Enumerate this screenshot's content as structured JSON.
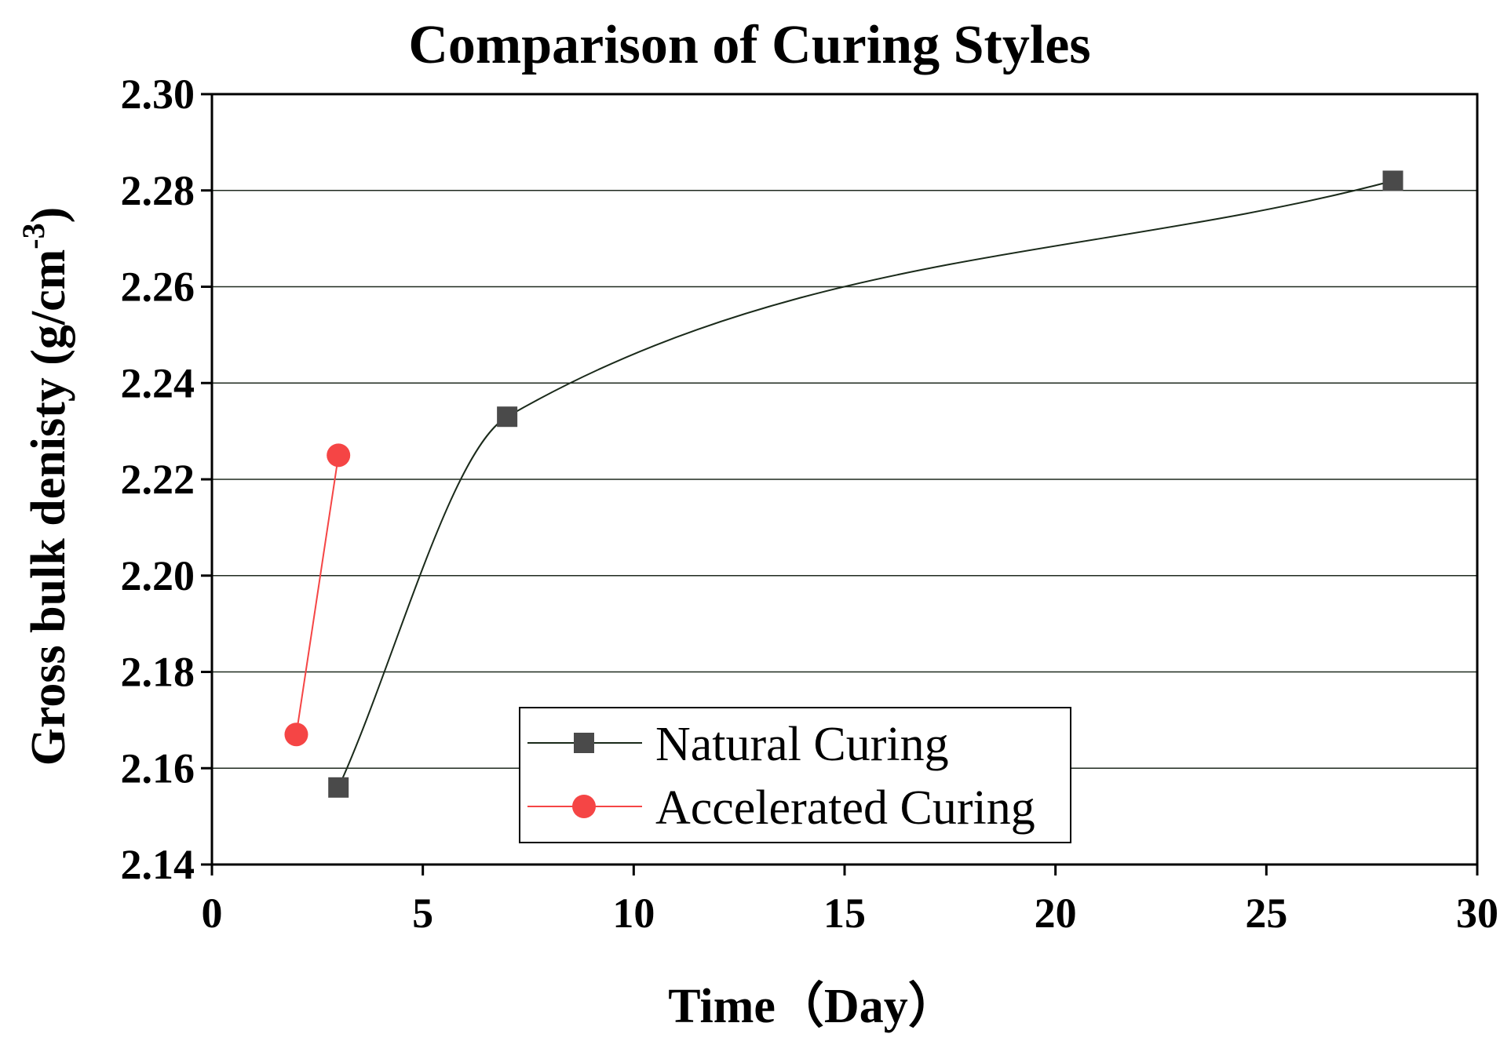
{
  "chart_data": {
    "type": "line",
    "title": "Comparison of Curing Styles",
    "xlabel": "Time（Day）",
    "ylabel": "Gross bulk denisty (g/cm",
    "ylabel_sup": "-3",
    "ylabel_close": ")",
    "xlim": [
      0,
      30
    ],
    "ylim": [
      2.14,
      2.3
    ],
    "x_ticks": [
      0,
      5,
      10,
      15,
      20,
      25,
      30
    ],
    "x_tick_labels": [
      "0",
      "5",
      "10",
      "15",
      "20",
      "25",
      "30"
    ],
    "y_ticks": [
      2.14,
      2.16,
      2.18,
      2.2,
      2.22,
      2.24,
      2.26,
      2.28,
      2.3
    ],
    "y_tick_labels": [
      "2.14",
      "2.16",
      "2.18",
      "2.20",
      "2.22",
      "2.24",
      "2.26",
      "2.28",
      "2.30"
    ],
    "grid": "horizontal",
    "legend_position": "bottom-center",
    "series": [
      {
        "name": "Natural Curing",
        "marker": "square",
        "color": "#4a4a4a",
        "line_color": "#1a2a1a",
        "x": [
          3,
          7,
          28
        ],
        "values": [
          2.156,
          2.233,
          2.282
        ]
      },
      {
        "name": "Accelerated Curing",
        "marker": "circle",
        "color": "#f54545",
        "line_color": "#f54545",
        "x": [
          2,
          3
        ],
        "values": [
          2.167,
          2.225
        ]
      }
    ]
  }
}
